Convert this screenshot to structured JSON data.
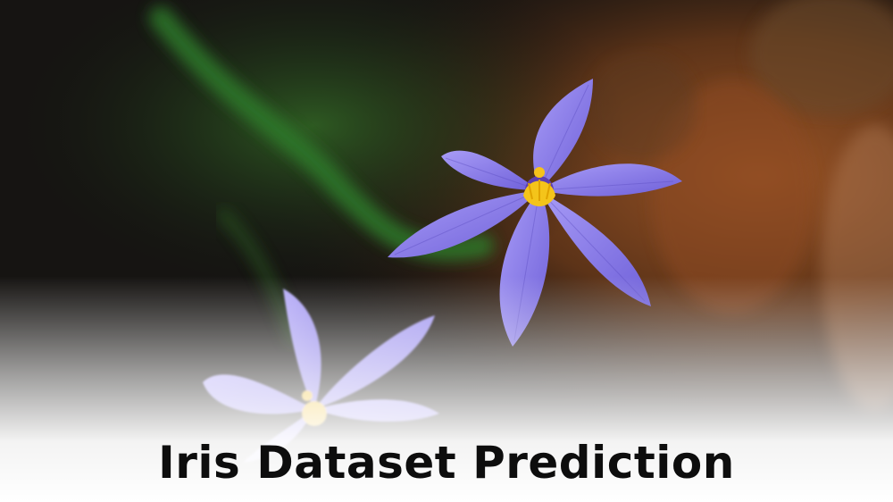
{
  "banner": {
    "title": "Iris Dataset Prediction"
  },
  "palette": {
    "petal": "#8d82ee",
    "petal_dark": "#5e4fc9",
    "stamen": "#f5c518",
    "stem": "#2f8a2a",
    "background_dark": "#141412",
    "background_warm": "#8a4a22",
    "fade": "#ffffff"
  },
  "image": {
    "subject": "two-blue-eyed-grass-flowers-icon"
  }
}
